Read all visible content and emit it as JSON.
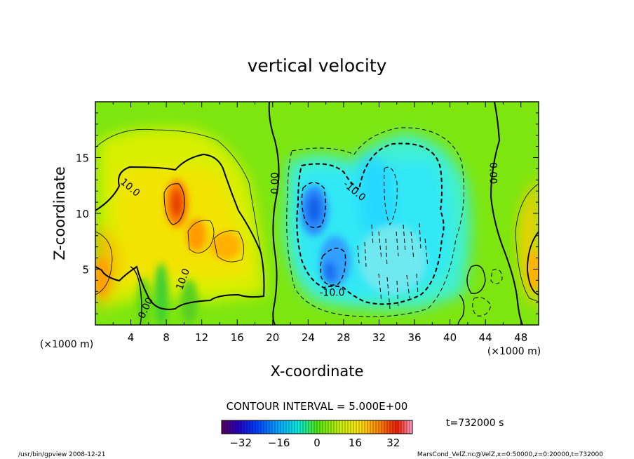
{
  "chart_data": {
    "type": "heatmap",
    "title": "vertical velocity",
    "xlabel": "X-coordinate",
    "ylabel": "Z-coordinate",
    "x_unit_left": "(×1000 m)",
    "x_unit_right": "(×1000 m)",
    "xlim": [
      0,
      50
    ],
    "ylim": [
      0,
      20
    ],
    "x_ticks": [
      4,
      8,
      12,
      16,
      20,
      24,
      28,
      32,
      36,
      40,
      44,
      48
    ],
    "y_ticks": [
      5,
      10,
      15
    ],
    "contour_interval_label": "CONTOUR INTERVAL = 5.000E+00",
    "time_label": "t=732000 s",
    "colorbar": {
      "range": [
        -40,
        40
      ],
      "ticks": [
        -32,
        -16,
        0,
        16,
        32
      ],
      "tick_labels": [
        "−32",
        "−16",
        "0",
        "16",
        "32"
      ]
    },
    "contour_labels": [
      {
        "text": "10.0",
        "x": 3.7,
        "z": 12.1,
        "rotate": 40
      },
      {
        "text": "10.0",
        "x": 10.2,
        "z": 4.0,
        "rotate": -70
      },
      {
        "text": "0.00",
        "x": 6.0,
        "z": 1.4,
        "rotate": -65
      },
      {
        "text": "0.00",
        "x": 20.6,
        "z": 12.7,
        "rotate": -90
      },
      {
        "text": "-10.0",
        "x": 29.0,
        "z": 11.8,
        "rotate": 40
      },
      {
        "text": "-10.0",
        "x": 26.7,
        "z": 2.6,
        "rotate": 0
      },
      {
        "text": "0.00",
        "x": 44.5,
        "z": 13.6,
        "rotate": 90
      }
    ],
    "features": [
      {
        "kind": "updraft",
        "x": 9.0,
        "z": 10.8,
        "peak": 32
      },
      {
        "kind": "updraft",
        "x": 12.0,
        "z": 7.8,
        "peak": 22
      },
      {
        "kind": "updraft",
        "x": 14.5,
        "z": 7.0,
        "peak": 20
      },
      {
        "kind": "updraft",
        "x": 1.5,
        "z": 5.0,
        "peak": 18
      },
      {
        "kind": "downdraft",
        "x": 24.5,
        "z": 10.5,
        "peak": -34
      },
      {
        "kind": "downdraft",
        "x": 27.0,
        "z": 6.0,
        "peak": -24
      },
      {
        "kind": "downdraft",
        "x": 31.0,
        "z": 12.0,
        "peak": -12
      }
    ]
  },
  "footer": {
    "left": "/usr/bin/gpview   2008-12-21",
    "right": "MarsCond_VelZ.nc@VelZ,x=0:50000,z=0:20000,t=732000"
  }
}
